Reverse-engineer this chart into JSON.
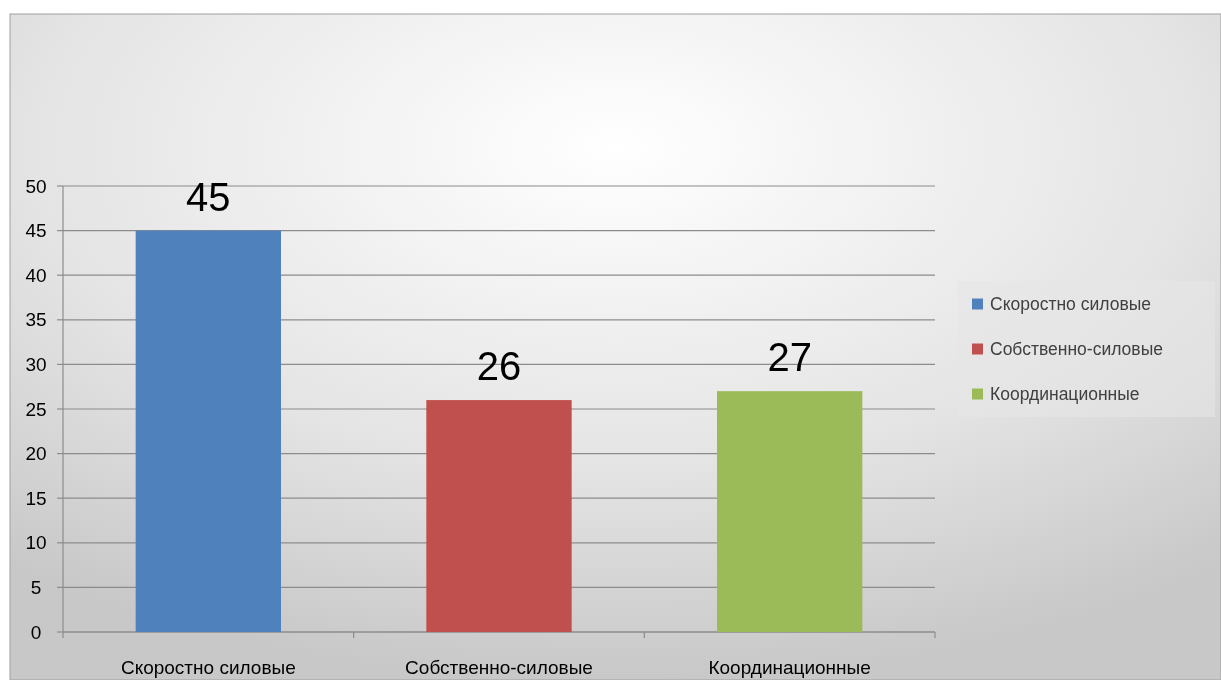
{
  "chart_data": {
    "type": "bar",
    "categories": [
      "Скоростно силовые",
      "Собственно-силовые",
      "Координационные"
    ],
    "series": [
      {
        "name": "Скоростно силовые",
        "color": "#4f81bd",
        "values": [
          45,
          null,
          null
        ]
      },
      {
        "name": "Собственно-силовые",
        "color": "#c0504d",
        "values": [
          null,
          26,
          null
        ]
      },
      {
        "name": "Координационные",
        "color": "#9bbb59",
        "values": [
          null,
          null,
          27
        ]
      }
    ],
    "stacked": true,
    "ylim": [
      0,
      50
    ],
    "yticks": [
      0,
      5,
      10,
      15,
      20,
      25,
      30,
      35,
      40,
      45,
      50
    ],
    "grid": "y",
    "data_labels": true,
    "legend": "right"
  }
}
